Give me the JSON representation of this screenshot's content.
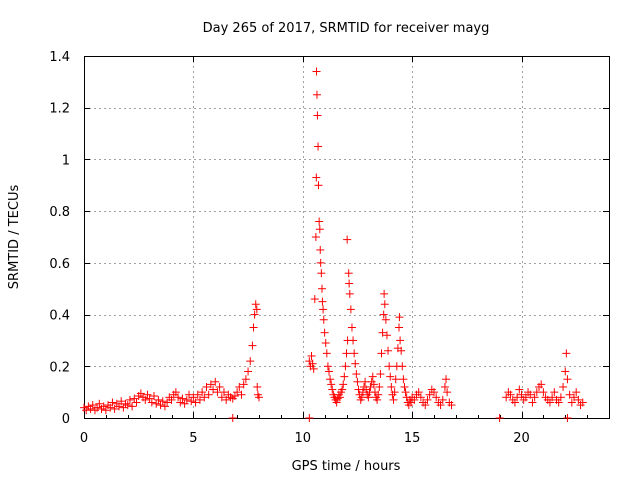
{
  "chart_data": {
    "type": "scatter",
    "title": "Day 265 of 2017, SRMTID for receiver mayg",
    "xlabel": "GPS time / hours",
    "ylabel": "SRMTID / TECUs",
    "xlim": [
      0,
      24
    ],
    "ylim": [
      0,
      1.4
    ],
    "grid": true,
    "marker": "+",
    "marker_color": "#ff0000",
    "x_ticks": [
      0,
      5,
      10,
      15,
      20
    ],
    "x_tick_labels": [
      "0",
      "5",
      "10",
      "15",
      "20"
    ],
    "y_ticks": [
      0,
      0.2,
      0.4,
      0.6,
      0.8,
      1.0,
      1.2,
      1.4
    ],
    "y_tick_labels": [
      "0",
      "0.2",
      "0.4",
      "0.6",
      "0.8",
      "1",
      "1.2",
      "1.4"
    ],
    "series": [
      {
        "name": "SRMTID",
        "points": [
          [
            0.0,
            0.04
          ],
          [
            0.1,
            0.03
          ],
          [
            0.2,
            0.045
          ],
          [
            0.3,
            0.035
          ],
          [
            0.4,
            0.05
          ],
          [
            0.5,
            0.03
          ],
          [
            0.6,
            0.04
          ],
          [
            0.7,
            0.055
          ],
          [
            0.8,
            0.035
          ],
          [
            0.9,
            0.045
          ],
          [
            1.0,
            0.03
          ],
          [
            1.1,
            0.05
          ],
          [
            1.2,
            0.04
          ],
          [
            1.3,
            0.06
          ],
          [
            1.4,
            0.035
          ],
          [
            1.5,
            0.055
          ],
          [
            1.6,
            0.045
          ],
          [
            1.7,
            0.065
          ],
          [
            1.8,
            0.04
          ],
          [
            1.9,
            0.055
          ],
          [
            2.0,
            0.05
          ],
          [
            2.1,
            0.07
          ],
          [
            2.2,
            0.045
          ],
          [
            2.3,
            0.075
          ],
          [
            2.4,
            0.06
          ],
          [
            2.5,
            0.085
          ],
          [
            2.6,
            0.095
          ],
          [
            2.7,
            0.08
          ],
          [
            2.8,
            0.07
          ],
          [
            2.9,
            0.09
          ],
          [
            3.0,
            0.075
          ],
          [
            3.1,
            0.06
          ],
          [
            3.2,
            0.085
          ],
          [
            3.3,
            0.055
          ],
          [
            3.4,
            0.07
          ],
          [
            3.5,
            0.05
          ],
          [
            3.6,
            0.065
          ],
          [
            3.7,
            0.045
          ],
          [
            3.8,
            0.06
          ],
          [
            3.9,
            0.08
          ],
          [
            4.0,
            0.07
          ],
          [
            4.1,
            0.09
          ],
          [
            4.2,
            0.1
          ],
          [
            4.3,
            0.08
          ],
          [
            4.4,
            0.06
          ],
          [
            4.5,
            0.075
          ],
          [
            4.6,
            0.055
          ],
          [
            4.7,
            0.07
          ],
          [
            4.8,
            0.09
          ],
          [
            4.9,
            0.065
          ],
          [
            5.0,
            0.08
          ],
          [
            5.1,
            0.06
          ],
          [
            5.2,
            0.09
          ],
          [
            5.3,
            0.07
          ],
          [
            5.4,
            0.1
          ],
          [
            5.5,
            0.08
          ],
          [
            5.6,
            0.12
          ],
          [
            5.7,
            0.09
          ],
          [
            5.8,
            0.13
          ],
          [
            5.9,
            0.11
          ],
          [
            6.0,
            0.14
          ],
          [
            6.1,
            0.1
          ],
          [
            6.2,
            0.12
          ],
          [
            6.3,
            0.08
          ],
          [
            6.4,
            0.1
          ],
          [
            6.5,
            0.07
          ],
          [
            6.6,
            0.09
          ],
          [
            6.7,
            0.08
          ],
          [
            6.8,
            0.075
          ],
          [
            6.9,
            0.085
          ],
          [
            7.0,
            0.1
          ],
          [
            7.1,
            0.12
          ],
          [
            7.2,
            0.09
          ],
          [
            7.3,
            0.13
          ],
          [
            7.4,
            0.15
          ],
          [
            7.5,
            0.18
          ],
          [
            7.6,
            0.22
          ],
          [
            7.7,
            0.28
          ],
          [
            7.75,
            0.35
          ],
          [
            7.8,
            0.4
          ],
          [
            7.85,
            0.44
          ],
          [
            7.9,
            0.42
          ],
          [
            7.92,
            0.12
          ],
          [
            7.95,
            0.09
          ],
          [
            8.0,
            0.08
          ],
          [
            10.3,
            0.22
          ],
          [
            10.35,
            0.2
          ],
          [
            10.4,
            0.24
          ],
          [
            10.45,
            0.21
          ],
          [
            10.5,
            0.19
          ],
          [
            10.55,
            0.46
          ],
          [
            10.6,
            0.7
          ],
          [
            10.62,
            0.93
          ],
          [
            10.63,
            1.34
          ],
          [
            10.65,
            1.25
          ],
          [
            10.67,
            1.17
          ],
          [
            10.7,
            1.05
          ],
          [
            10.72,
            0.9
          ],
          [
            10.75,
            0.76
          ],
          [
            10.78,
            0.73
          ],
          [
            10.8,
            0.65
          ],
          [
            10.82,
            0.6
          ],
          [
            10.85,
            0.56
          ],
          [
            10.88,
            0.5
          ],
          [
            10.9,
            0.45
          ],
          [
            10.93,
            0.42
          ],
          [
            10.96,
            0.38
          ],
          [
            11.0,
            0.33
          ],
          [
            11.05,
            0.29
          ],
          [
            11.1,
            0.25
          ],
          [
            11.15,
            0.2
          ],
          [
            11.2,
            0.18
          ],
          [
            11.25,
            0.15
          ],
          [
            11.3,
            0.13
          ],
          [
            11.35,
            0.11
          ],
          [
            11.4,
            0.09
          ],
          [
            11.45,
            0.08
          ],
          [
            11.5,
            0.07
          ],
          [
            11.55,
            0.06
          ],
          [
            11.6,
            0.075
          ],
          [
            11.65,
            0.09
          ],
          [
            11.7,
            0.08
          ],
          [
            11.75,
            0.1
          ],
          [
            11.8,
            0.11
          ],
          [
            11.85,
            0.13
          ],
          [
            11.9,
            0.16
          ],
          [
            11.95,
            0.2
          ],
          [
            12.0,
            0.25
          ],
          [
            12.03,
            0.69
          ],
          [
            12.05,
            0.3
          ],
          [
            12.1,
            0.56
          ],
          [
            12.12,
            0.52
          ],
          [
            12.15,
            0.48
          ],
          [
            12.2,
            0.42
          ],
          [
            12.25,
            0.35
          ],
          [
            12.3,
            0.3
          ],
          [
            12.35,
            0.25
          ],
          [
            12.4,
            0.21
          ],
          [
            12.45,
            0.17
          ],
          [
            12.5,
            0.14
          ],
          [
            12.55,
            0.11
          ],
          [
            12.6,
            0.09
          ],
          [
            12.65,
            0.07
          ],
          [
            12.7,
            0.08
          ],
          [
            12.75,
            0.1
          ],
          [
            12.8,
            0.12
          ],
          [
            12.85,
            0.14
          ],
          [
            12.9,
            0.11
          ],
          [
            12.95,
            0.09
          ],
          [
            13.0,
            0.08
          ],
          [
            13.05,
            0.1
          ],
          [
            13.1,
            0.12
          ],
          [
            13.15,
            0.14
          ],
          [
            13.2,
            0.16
          ],
          [
            13.25,
            0.13
          ],
          [
            13.3,
            0.1
          ],
          [
            13.35,
            0.08
          ],
          [
            13.4,
            0.07
          ],
          [
            13.45,
            0.09
          ],
          [
            13.5,
            0.12
          ],
          [
            13.55,
            0.17
          ],
          [
            13.6,
            0.25
          ],
          [
            13.65,
            0.33
          ],
          [
            13.7,
            0.4
          ],
          [
            13.72,
            0.48
          ],
          [
            13.75,
            0.44
          ],
          [
            13.8,
            0.38
          ],
          [
            13.85,
            0.32
          ],
          [
            13.9,
            0.26
          ],
          [
            13.95,
            0.2
          ],
          [
            14.0,
            0.16
          ],
          [
            14.05,
            0.12
          ],
          [
            14.1,
            0.09
          ],
          [
            14.15,
            0.07
          ],
          [
            14.2,
            0.1
          ],
          [
            14.25,
            0.15
          ],
          [
            14.3,
            0.2
          ],
          [
            14.35,
            0.27
          ],
          [
            14.4,
            0.35
          ],
          [
            14.42,
            0.39
          ],
          [
            14.45,
            0.3
          ],
          [
            14.5,
            0.26
          ],
          [
            14.55,
            0.2
          ],
          [
            14.6,
            0.15
          ],
          [
            14.65,
            0.12
          ],
          [
            14.7,
            0.1
          ],
          [
            14.75,
            0.08
          ],
          [
            14.8,
            0.06
          ],
          [
            14.85,
            0.05
          ],
          [
            14.9,
            0.07
          ],
          [
            14.95,
            0.06
          ],
          [
            15.0,
            0.08
          ],
          [
            15.1,
            0.07
          ],
          [
            15.2,
            0.09
          ],
          [
            15.3,
            0.1
          ],
          [
            15.4,
            0.08
          ],
          [
            15.5,
            0.06
          ],
          [
            15.6,
            0.05
          ],
          [
            15.7,
            0.07
          ],
          [
            15.8,
            0.09
          ],
          [
            15.9,
            0.11
          ],
          [
            16.0,
            0.1
          ],
          [
            16.1,
            0.08
          ],
          [
            16.2,
            0.06
          ],
          [
            16.3,
            0.05
          ],
          [
            16.4,
            0.07
          ],
          [
            16.5,
            0.12
          ],
          [
            16.55,
            0.15
          ],
          [
            16.6,
            0.1
          ],
          [
            16.7,
            0.06
          ],
          [
            16.8,
            0.05
          ],
          [
            19.3,
            0.08
          ],
          [
            19.4,
            0.1
          ],
          [
            19.5,
            0.09
          ],
          [
            19.6,
            0.07
          ],
          [
            19.7,
            0.06
          ],
          [
            19.8,
            0.08
          ],
          [
            19.9,
            0.11
          ],
          [
            20.0,
            0.09
          ],
          [
            20.1,
            0.07
          ],
          [
            20.2,
            0.08
          ],
          [
            20.3,
            0.1
          ],
          [
            20.4,
            0.09
          ],
          [
            20.5,
            0.06
          ],
          [
            20.6,
            0.08
          ],
          [
            20.7,
            0.1
          ],
          [
            20.8,
            0.12
          ],
          [
            20.9,
            0.13
          ],
          [
            21.0,
            0.1
          ],
          [
            21.1,
            0.08
          ],
          [
            21.2,
            0.07
          ],
          [
            21.3,
            0.06
          ],
          [
            21.4,
            0.08
          ],
          [
            21.5,
            0.1
          ],
          [
            21.6,
            0.07
          ],
          [
            21.7,
            0.06
          ],
          [
            21.8,
            0.08
          ],
          [
            21.9,
            0.12
          ],
          [
            22.0,
            0.18
          ],
          [
            22.05,
            0.25
          ],
          [
            22.1,
            0.15
          ],
          [
            22.2,
            0.09
          ],
          [
            22.3,
            0.06
          ],
          [
            22.4,
            0.08
          ],
          [
            22.5,
            0.1
          ],
          [
            22.6,
            0.07
          ],
          [
            22.7,
            0.05
          ],
          [
            22.8,
            0.06
          ]
        ]
      },
      {
        "name": "zero-level markers",
        "points": [
          [
            6.8,
            0.0
          ],
          [
            10.3,
            0.0
          ],
          [
            19.0,
            0.0
          ],
          [
            22.1,
            0.0
          ]
        ]
      }
    ]
  }
}
